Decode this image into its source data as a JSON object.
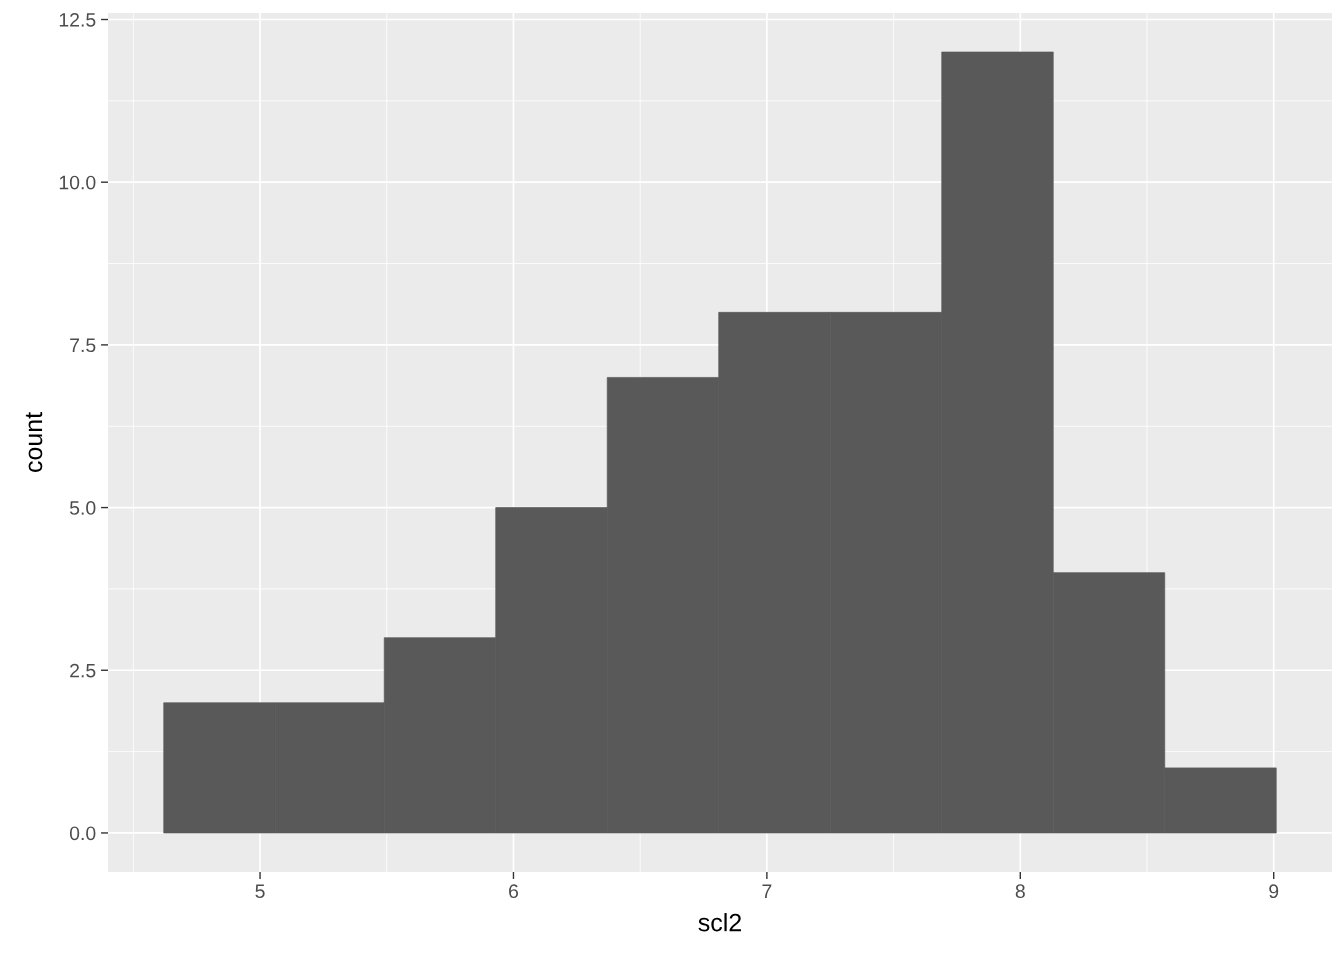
{
  "chart_data": {
    "type": "histogram",
    "xlabel": "scl2",
    "ylabel": "count",
    "bins": [
      4.62,
      5.06,
      5.49,
      5.93,
      6.37,
      6.81,
      7.25,
      7.69,
      8.13,
      8.57,
      9.01
    ],
    "values": [
      2,
      2,
      3,
      5,
      7,
      8,
      8,
      12,
      4,
      1
    ],
    "color": "#595959",
    "xlim": [
      4.4,
      9.23
    ],
    "xticks": [
      5,
      6,
      7,
      8,
      9
    ],
    "ylim": [
      -0.6,
      12.6
    ],
    "yticks": [
      {
        "value": 0,
        "label": "0.0"
      },
      {
        "value": 2.5,
        "label": "2.5"
      },
      {
        "value": 5,
        "label": "5.0"
      },
      {
        "value": 7.5,
        "label": "7.5"
      },
      {
        "value": 10,
        "label": "10.0"
      },
      {
        "value": 12.5,
        "label": "12.5"
      }
    ],
    "grid": true
  }
}
